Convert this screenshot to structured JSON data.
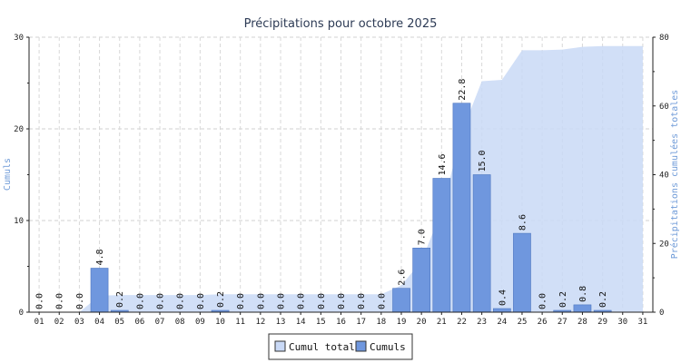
{
  "chart_data": {
    "type": "bar",
    "title": "Précipitations pour octobre 2025",
    "ylabel": "Cumuls",
    "y2label": "Précipitations cumulées totales",
    "ylim": [
      0,
      30
    ],
    "y2lim": [
      0,
      80
    ],
    "yticks": [
      "0",
      "10",
      "20",
      "30"
    ],
    "y2ticks": [
      "0",
      "20",
      "40",
      "60",
      "80"
    ],
    "grid": true,
    "legend_position": "bottom",
    "categories": [
      "01",
      "02",
      "03",
      "04",
      "05",
      "06",
      "07",
      "08",
      "09",
      "10",
      "11",
      "12",
      "13",
      "14",
      "15",
      "16",
      "17",
      "18",
      "19",
      "20",
      "21",
      "22",
      "23",
      "24",
      "25",
      "26",
      "27",
      "28",
      "29",
      "30",
      "31"
    ],
    "series": [
      {
        "name": "Cumuls",
        "kind": "bar",
        "axis": "left",
        "color": "#6f97de",
        "values": [
          0.0,
          0.0,
          0.0,
          4.8,
          0.2,
          0.0,
          0.0,
          0.0,
          0.0,
          0.2,
          0.0,
          0.0,
          0.0,
          0.0,
          0.0,
          0.0,
          0.0,
          0.0,
          2.6,
          7.0,
          14.6,
          22.8,
          15.0,
          0.4,
          8.6,
          0.0,
          0.2,
          0.8,
          0.2,
          null,
          null
        ],
        "labels": [
          "0.0",
          "0.0",
          "0.0",
          "4.8",
          "0.2",
          "0.0",
          "0.0",
          "0.0",
          "0.0",
          "0.2",
          "0.0",
          "0.0",
          "0.0",
          "0.0",
          "0.0",
          "0.0",
          "0.0",
          "0.0",
          "2.6",
          "7.0",
          "14.6",
          "22.8",
          "15.0",
          "0.4",
          "8.6",
          "0.0",
          "0.2",
          "0.8",
          "0.2",
          "",
          ""
        ]
      },
      {
        "name": "Cumul total",
        "kind": "area",
        "axis": "right",
        "color": "#c9d9f6",
        "values": [
          0.0,
          0.0,
          0.0,
          4.8,
          5.0,
          5.0,
          5.0,
          5.0,
          5.0,
          5.2,
          5.2,
          5.2,
          5.2,
          5.2,
          5.2,
          5.2,
          5.2,
          5.2,
          7.8,
          14.8,
          29.4,
          52.2,
          67.2,
          67.6,
          76.2,
          76.2,
          76.4,
          77.2,
          77.4,
          77.4,
          77.4
        ]
      }
    ],
    "legend": [
      {
        "label": "Cumul total",
        "color": "#c9d9f6"
      },
      {
        "label": "Cumuls",
        "color": "#6f97de"
      }
    ]
  }
}
